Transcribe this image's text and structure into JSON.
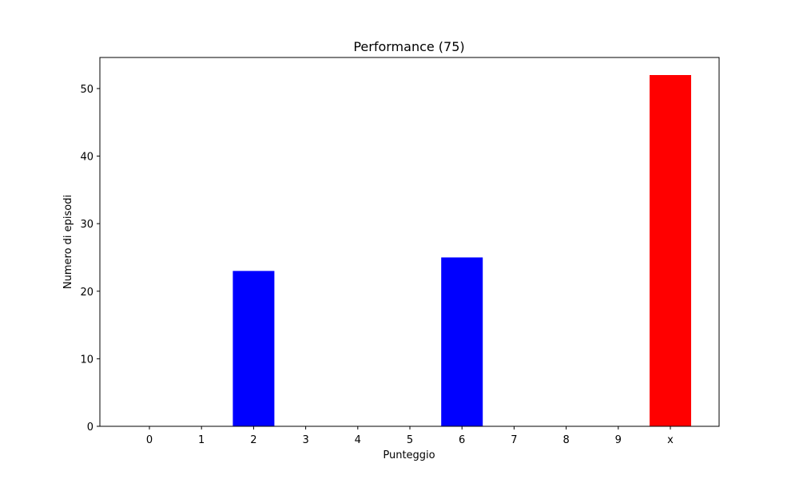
{
  "chart_data": {
    "type": "bar",
    "title": "Performance (75)",
    "xlabel": "Punteggio",
    "ylabel": "Numero di episodi",
    "categories": [
      "0",
      "1",
      "2",
      "3",
      "4",
      "5",
      "6",
      "7",
      "8",
      "9",
      "x"
    ],
    "values": [
      0,
      0,
      23,
      0,
      0,
      0,
      25,
      0,
      0,
      0,
      52
    ],
    "bar_colors": [
      "#0000ff",
      "#0000ff",
      "#0000ff",
      "#0000ff",
      "#0000ff",
      "#0000ff",
      "#0000ff",
      "#0000ff",
      "#0000ff",
      "#0000ff",
      "#ff0000"
    ],
    "ylim": [
      0,
      54.6
    ],
    "yticks": [
      0,
      10,
      20,
      30,
      40,
      50
    ],
    "grid": false,
    "legend": "none"
  }
}
